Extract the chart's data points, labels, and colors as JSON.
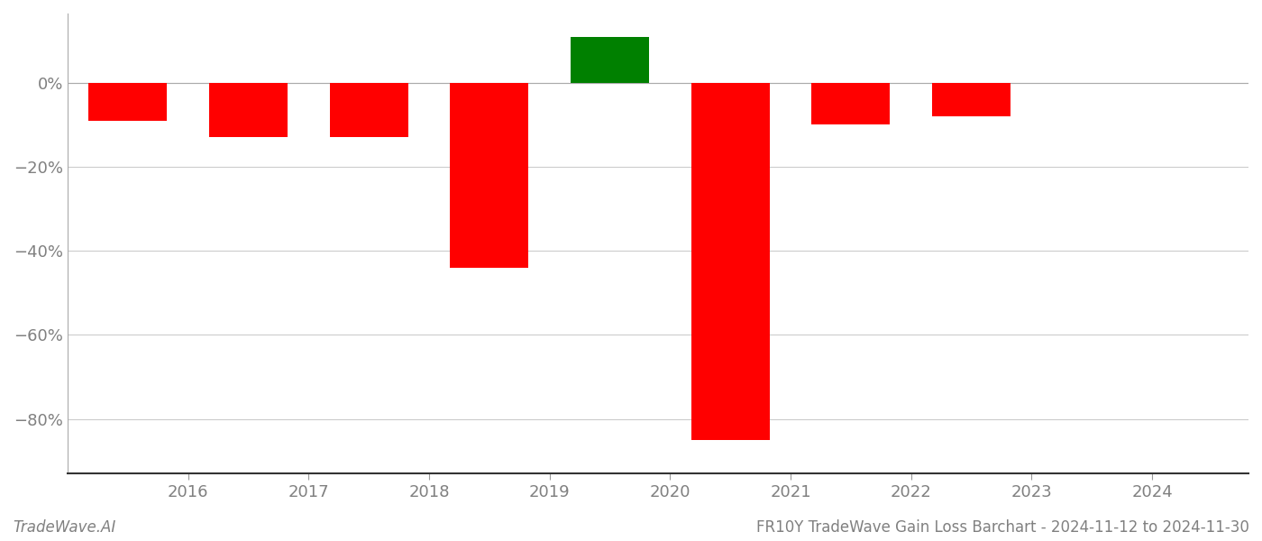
{
  "bar_positions": [
    2015.5,
    2016.5,
    2017.5,
    2018.5,
    2019.5,
    2020.5,
    2021.5,
    2022.5
  ],
  "values": [
    -0.09,
    -0.13,
    -0.13,
    -0.44,
    0.11,
    -0.85,
    -0.1,
    -0.08
  ],
  "colors": [
    "#ff0000",
    "#ff0000",
    "#ff0000",
    "#ff0000",
    "#008000",
    "#ff0000",
    "#ff0000",
    "#ff0000"
  ],
  "xlim_min": 2015.0,
  "xlim_max": 2024.8,
  "ylim_min": -0.93,
  "ylim_max": 0.165,
  "ytick_values": [
    0.0,
    -0.2,
    -0.4,
    -0.6,
    -0.8
  ],
  "ytick_labels": [
    "0%",
    "−20%",
    "−40%",
    "−60%",
    "−80%"
  ],
  "xlabel": "",
  "ylabel": "",
  "title": "",
  "footer_left": "TradeWave.AI",
  "footer_right": "FR10Y TradeWave Gain Loss Barchart - 2024-11-12 to 2024-11-30",
  "bar_width": 0.65,
  "grid_color": "#cccccc",
  "background_color": "#ffffff",
  "text_color": "#808080",
  "xtick_years": [
    2016,
    2017,
    2018,
    2019,
    2020,
    2021,
    2022,
    2023,
    2024
  ],
  "left_spine_color": "#aaaaaa",
  "bottom_spine_color": "#333333",
  "zero_line_color": "#aaaaaa"
}
